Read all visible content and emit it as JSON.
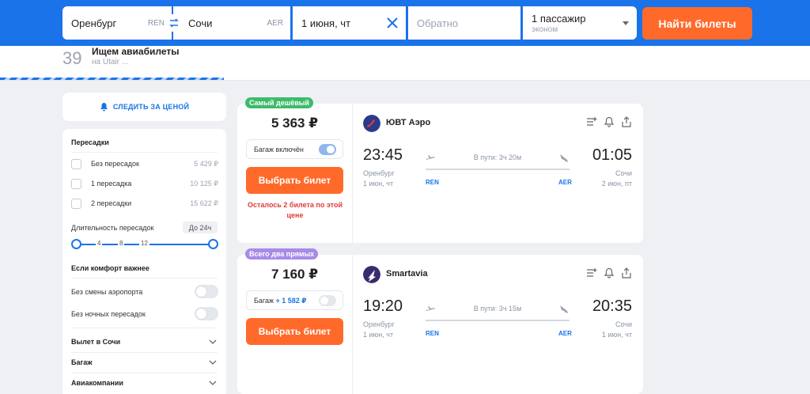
{
  "search": {
    "from_city": "Оренбург",
    "from_code": "REN",
    "to_city": "Сочи",
    "to_code": "AER",
    "date": "1 июня, чт",
    "return_placeholder": "Обратно",
    "passengers": "1 пассажир",
    "cabin": "эконом",
    "submit_label": "Найти билеты"
  },
  "progress": {
    "count": "39",
    "title": "Ищем авиабилеты",
    "subtitle": "на Utair ..."
  },
  "follow": {
    "label": "СЛЕДИТЬ ЗА ЦЕНОЙ"
  },
  "filters": {
    "transfers_title": "Пересадки",
    "transfers": [
      {
        "label": "Без пересадок",
        "price": "5 429 ₽"
      },
      {
        "label": "1 пересадка",
        "price": "10 125 ₽"
      },
      {
        "label": "2 пересадки",
        "price": "15 622 ₽"
      }
    ],
    "duration_label": "Длительность пересадок",
    "duration_value": "До 24ч",
    "duration_ticks": [
      "4",
      "8",
      "12"
    ],
    "comfort_title": "Если комфорт важнее",
    "toggles": [
      {
        "label": "Без смены аэропорта"
      },
      {
        "label": "Без ночных пересадок"
      }
    ],
    "accordions": [
      {
        "label": "Вылет в Сочи"
      },
      {
        "label": "Багаж"
      },
      {
        "label": "Авиакомпании"
      }
    ]
  },
  "colors": {
    "accent": "#1a73e8",
    "cta": "#ff6a2b",
    "cheapest_badge": "#3dbb6a",
    "direct_badge": "#a88be8",
    "warning": "#e03a3a"
  },
  "offers": [
    {
      "badge": "Самый дешёвый",
      "price": "5 363 ₽",
      "baggage_label": "Багаж включён",
      "baggage_extra": "",
      "baggage_on": true,
      "buy_label": "Выбрать билет",
      "warning": "Осталось 2 билета по этой цене",
      "airline": "ЮВТ Аэро",
      "dep_time": "23:45",
      "arr_time": "01:05",
      "dep_city": "Оренбург",
      "arr_city": "Сочи",
      "dep_date": "1 июн, чт",
      "arr_date": "2 июн, пт",
      "duration": "В пути: 3ч 20м",
      "dep_code": "REN",
      "arr_code": "AER"
    },
    {
      "badge": "Всего два прямых",
      "price": "7 160 ₽",
      "baggage_label": "Багаж ",
      "baggage_extra": "+ 1 582 ₽",
      "baggage_on": false,
      "buy_label": "Выбрать билет",
      "warning": "",
      "airline": "Smartavia",
      "dep_time": "19:20",
      "arr_time": "20:35",
      "dep_city": "Оренбург",
      "arr_city": "Сочи",
      "dep_date": "1 июн, чт",
      "arr_date": "1 июн, чт",
      "duration": "В пути: 3ч 15м",
      "dep_code": "REN",
      "arr_code": "AER"
    }
  ]
}
